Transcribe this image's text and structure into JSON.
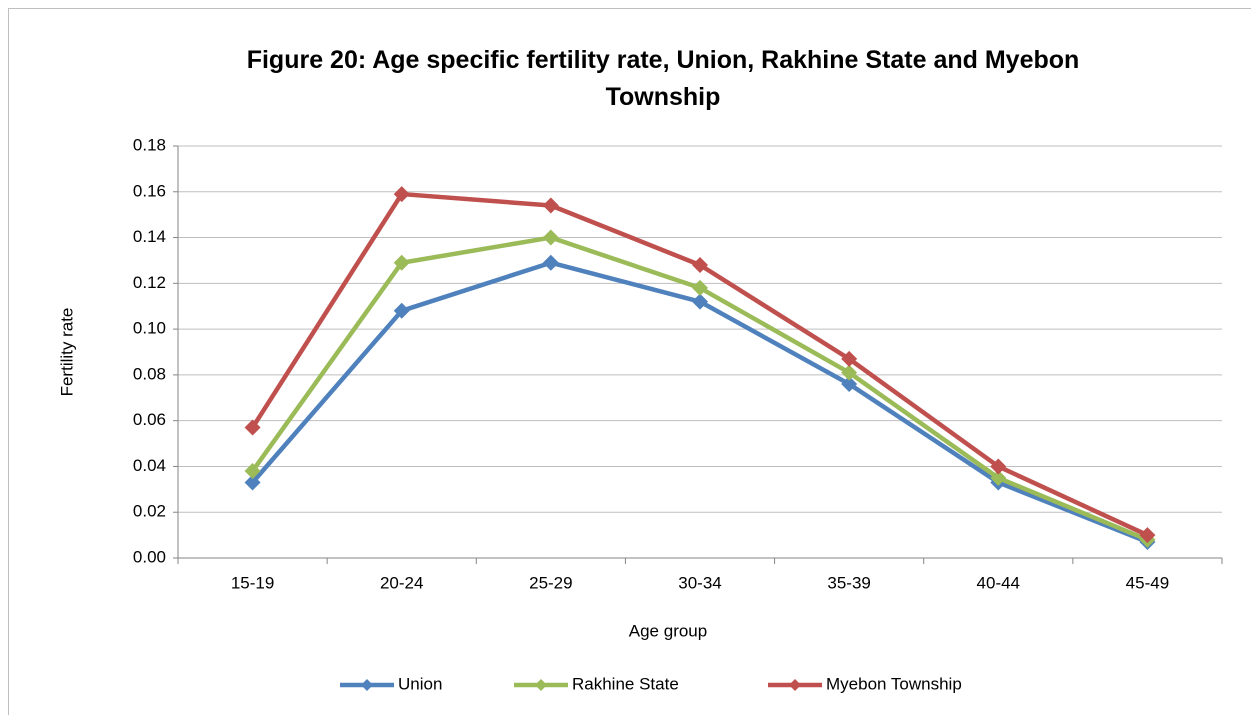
{
  "chart_data": {
    "type": "line",
    "title": "Figure 20: Age specific fertility rate, Union, Rakhine State and Myebon Township",
    "xlabel": "Age group",
    "ylabel": "Fertility rate",
    "categories": [
      "15-19",
      "20-24",
      "25-29",
      "30-34",
      "35-39",
      "40-44",
      "45-49"
    ],
    "series": [
      {
        "name": "Union",
        "color": "#4f81bd",
        "values": [
          0.033,
          0.108,
          0.129,
          0.112,
          0.076,
          0.033,
          0.007
        ]
      },
      {
        "name": "Rakhine State",
        "color": "#9bbb59",
        "values": [
          0.038,
          0.129,
          0.14,
          0.118,
          0.081,
          0.035,
          0.008
        ]
      },
      {
        "name": "Myebon Township",
        "color": "#c0504d",
        "values": [
          0.057,
          0.159,
          0.154,
          0.128,
          0.087,
          0.04,
          0.01
        ]
      }
    ],
    "ylim": [
      0,
      0.18
    ],
    "yticks": [
      {
        "value": 0,
        "label": "0.00"
      },
      0.02,
      0.04,
      0.06,
      0.08,
      {
        "value": 0.1,
        "label": "0.10"
      },
      0.12,
      0.14,
      0.16,
      0.18
    ],
    "grid": true,
    "legend": "bottom"
  }
}
